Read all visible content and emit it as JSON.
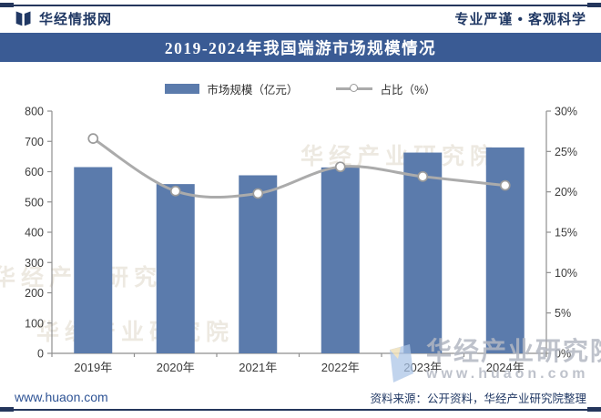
{
  "header": {
    "brand": "华经情报网",
    "tagline": "专业严谨 • 客观科学"
  },
  "title": "2019-2024年我国端游市场规模情况",
  "legend": {
    "bar_label": "市场规模（亿元）",
    "line_label": "占比（%）"
  },
  "chart_data": {
    "type": "bar+line combo",
    "categories": [
      "2019年",
      "2020年",
      "2021年",
      "2022年",
      "2023年",
      "2024年"
    ],
    "series": [
      {
        "name": "市场规模（亿元）",
        "type": "bar",
        "axis": "left",
        "values": [
          615,
          559,
          588,
          614,
          663,
          680
        ]
      },
      {
        "name": "占比（%）",
        "type": "line",
        "axis": "right",
        "values": [
          26.6,
          20.1,
          19.8,
          23.1,
          21.9,
          20.8
        ]
      }
    ],
    "left_axis": {
      "min": 0,
      "max": 800,
      "step": 100,
      "tick_labels": [
        "0",
        "100",
        "200",
        "300",
        "400",
        "500",
        "600",
        "700",
        "800"
      ]
    },
    "right_axis": {
      "min": 0,
      "max": 30,
      "step": 5,
      "tick_labels": [
        "0%",
        "5%",
        "10%",
        "15%",
        "20%",
        "25%",
        "30%"
      ]
    },
    "grid": false,
    "legend_position": "top"
  },
  "watermark": {
    "diagonal_text": "华经产业研究院",
    "corner": {
      "title": "华经产业研究院",
      "url": "www.huaon.com"
    }
  },
  "footer": {
    "site": "www.huaon.com",
    "source": "资料来源：公开资料，华经产业研究院整理"
  },
  "colors": {
    "navy": "#203864",
    "banner_bg": "#3a5b94",
    "bar": "#5b7bac",
    "line": "#ababab",
    "line_marker": "#9b9b9b",
    "axis": "#8f8f8f",
    "text": "#3c3c3c",
    "footer_link": "#2e5395",
    "watermark_gray": "#b3b8c3"
  }
}
